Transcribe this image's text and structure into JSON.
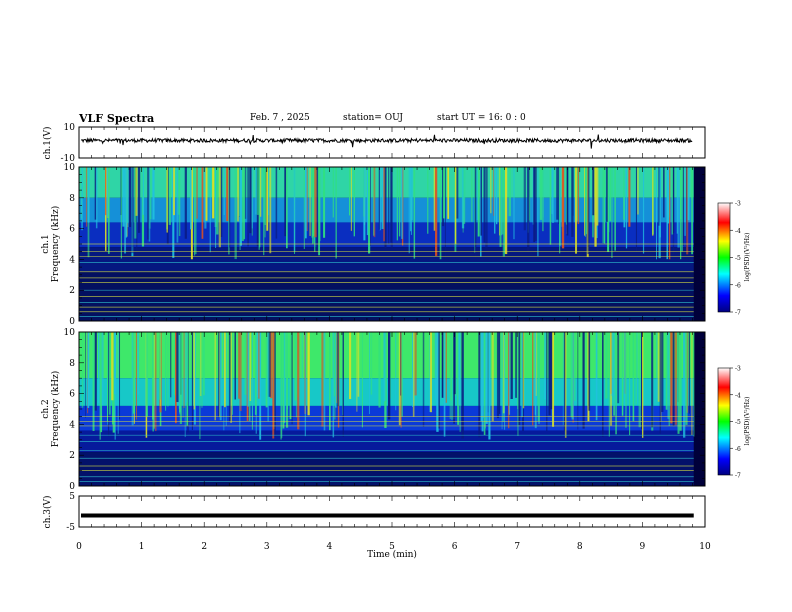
{
  "header": {
    "title": "VLF Spectra",
    "date": "Feb. 7 , 2025",
    "station": "station= OUJ",
    "start_ut": "start UT =  16: 0  : 0"
  },
  "colors": {
    "background_spectrogram": "#00003a",
    "trace": "#000000"
  },
  "chart_data": [
    {
      "type": "line",
      "panel": "ch1-waveform",
      "ylabel": "ch.1(V)",
      "ylim": [
        -10,
        10
      ],
      "y_ticks": [
        "10",
        "-10"
      ],
      "series": [
        {
          "name": "",
          "values": []
        }
      ]
    },
    {
      "type": "heatmap",
      "panel": "ch1-spectrogram",
      "ylabel": "ch.1\nFrequency (kHz)",
      "ylabel_line1": "ch.1",
      "ylabel_line2": "Frequency (kHz)",
      "ylim": [
        0,
        10
      ],
      "y_ticks": [
        "0",
        "2",
        "4",
        "6",
        "8",
        "10"
      ],
      "colorbar": {
        "label": "log(PSD)(V²/Hz)",
        "range": [
          -7,
          -3
        ],
        "ticks": [
          "-7",
          "-6",
          "-5",
          "-4",
          "-3"
        ]
      }
    },
    {
      "type": "heatmap",
      "panel": "ch2-spectrogram",
      "ylabel_line1": "ch.2",
      "ylabel_line2": "Frequency (kHz)",
      "ylim": [
        0,
        10
      ],
      "y_ticks": [
        "0",
        "2",
        "4",
        "6",
        "8",
        "10"
      ],
      "colorbar": {
        "label": "log(PSD)(V²/Hz)",
        "range": [
          -7,
          -3
        ],
        "ticks": [
          "-7",
          "-6",
          "-5",
          "-4",
          "-3"
        ]
      }
    },
    {
      "type": "line",
      "panel": "ch3-waveform",
      "ylabel": "ch.3(V)",
      "ylim": [
        -5,
        5
      ],
      "y_ticks": [
        "5",
        "-5"
      ],
      "series": [
        {
          "name": "",
          "values": [
            -1.3,
            -1.3
          ]
        }
      ]
    }
  ],
  "x_axis": {
    "label": "Time (min)",
    "range": [
      0,
      10
    ],
    "ticks": [
      "0",
      "1",
      "2",
      "3",
      "4",
      "5",
      "6",
      "7",
      "8",
      "9",
      "10"
    ]
  }
}
